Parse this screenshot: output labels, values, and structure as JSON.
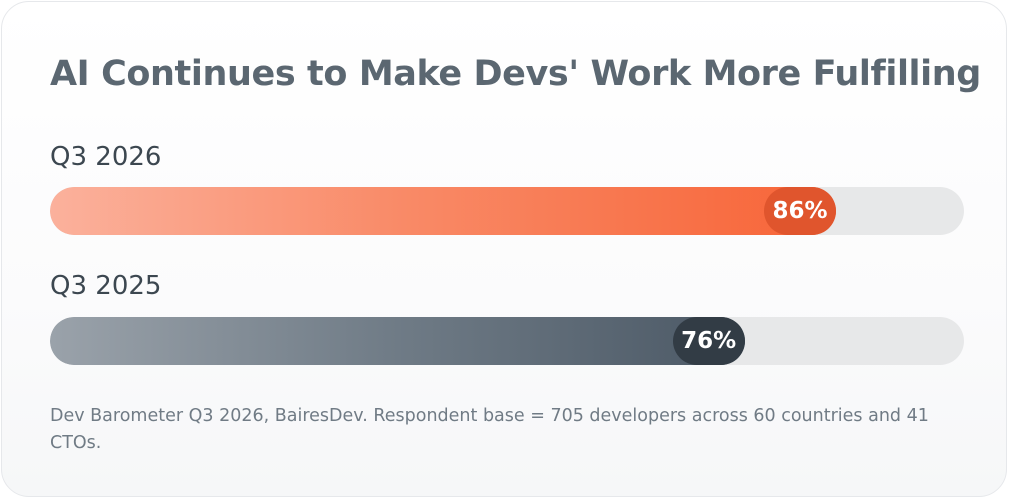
{
  "title": "AI Continues to Make Devs' Work More Fulfilling",
  "source_note": "Dev Barometer Q3 2026, BairesDev. Respondent base = 705 developers across 60 countries and 41 CTOs.",
  "colors": {
    "q3_2026_fill": "#f76437",
    "q3_2026_badge": "#e0552d",
    "q3_2025_fill": "#4b5865",
    "q3_2025_badge": "#323c45",
    "track": "#e7e8e9"
  },
  "chart_data": {
    "type": "bar",
    "orientation": "horizontal",
    "title": "AI Continues to Make Devs' Work More Fulfilling",
    "categories": [
      "Q3 2026",
      "Q3 2025"
    ],
    "values": [
      86,
      76
    ],
    "value_labels": [
      "86%",
      "76%"
    ],
    "unit": "%",
    "xlim": [
      0,
      100
    ],
    "grid": false,
    "legend": "none"
  }
}
